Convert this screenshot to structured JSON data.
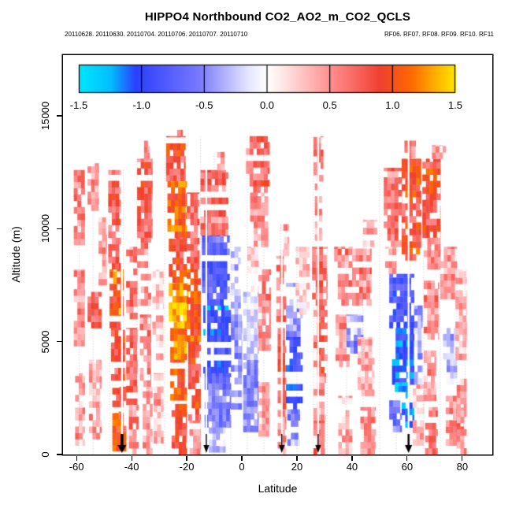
{
  "chart_data": {
    "type": "heatmap",
    "title": "HIPPO4 Northbound CO2_AO2_m_CO2_QCLS",
    "subtitle_left": "20110628. 20110630. 20110704. 20110706. 20110707. 20110710",
    "subtitle_right": "RF06. RF07. RF08. RF09. RF10. RF11",
    "xlabel": "Latitude",
    "ylabel": "Altitude (m)",
    "xlim": [
      -64.9,
      90.9
    ],
    "ylim": [
      0,
      17686
    ],
    "x_ticks": [
      -60,
      -40,
      -20,
      0,
      20,
      40,
      60,
      80
    ],
    "y_ticks": [
      0,
      5000,
      10000,
      15000
    ],
    "grid": false,
    "legend_position": "top-inside",
    "colorbar": {
      "range": [
        -1.5,
        1.5
      ],
      "ticks": [
        -1.5,
        -1.0,
        -0.5,
        0.0,
        0.5,
        1.0,
        1.5
      ],
      "tick_labels": [
        "-1.5",
        "-1.0",
        "-0.5",
        "0.0",
        "0.5",
        "1.0",
        "1.5"
      ],
      "stops": [
        [
          -1.5,
          "#00E6FF"
        ],
        [
          -1.25,
          "#00BFFF"
        ],
        [
          -1.05,
          "#2B3FFF"
        ],
        [
          -0.55,
          "#7878FF"
        ],
        [
          -0.15,
          "#E6E6FF"
        ],
        [
          0.0,
          "#FFFFFF"
        ],
        [
          0.15,
          "#FFE1E1"
        ],
        [
          0.55,
          "#FF8585"
        ],
        [
          0.9,
          "#F04030"
        ],
        [
          1.15,
          "#FF6A00"
        ],
        [
          1.35,
          "#FFB400"
        ],
        [
          1.5,
          "#FFE600"
        ]
      ]
    },
    "arrows": [
      {
        "lat": -43.5,
        "shaft": 3.5,
        "head": 5.5
      },
      {
        "lat": -12.9,
        "shaft": 1.4,
        "head": 3.6
      },
      {
        "lat": 14.5,
        "shaft": 1.4,
        "head": 3.6
      },
      {
        "lat": 27.7,
        "shaft": 1.4,
        "head": 3.6
      },
      {
        "lat": 60.5,
        "shaft": 2.4,
        "head": 4.6
      }
    ],
    "patches": [
      [
        -61,
        -57,
        9000,
        12600,
        0.55
      ],
      [
        -61,
        -57,
        4800,
        8200,
        0.45
      ],
      [
        -60.5,
        -57,
        400,
        3600,
        0.4
      ],
      [
        -56,
        -52,
        10800,
        12900,
        0.5
      ],
      [
        -56,
        -51,
        5600,
        7200,
        0.65
      ],
      [
        -55.5,
        -51,
        400,
        4200,
        0.35
      ],
      [
        -52,
        -49,
        7500,
        10500,
        0.35
      ],
      [
        -48.5,
        -44,
        8200,
        12600,
        0.7
      ],
      [
        -48,
        -43,
        5600,
        8200,
        1.0
      ],
      [
        -47.5,
        -42.5,
        3000,
        5600,
        0.85
      ],
      [
        -47,
        -42,
        150,
        3000,
        0.95
      ],
      [
        -46,
        -44,
        6200,
        7000,
        1.3
      ],
      [
        -46,
        -43.5,
        1000,
        1900,
        1.2
      ],
      [
        -42,
        -38,
        6000,
        9200,
        0.6
      ],
      [
        -42,
        -38,
        2200,
        5600,
        0.7
      ],
      [
        -41,
        -37.5,
        0,
        2200,
        0.5
      ],
      [
        -38,
        -32.5,
        9600,
        13100,
        0.7
      ],
      [
        -35.5,
        -33.5,
        13100,
        13900,
        0.5
      ],
      [
        -38,
        -33,
        6600,
        9600,
        0.5
      ],
      [
        -37,
        -33,
        3000,
        6200,
        0.6
      ],
      [
        -36,
        -32.5,
        0,
        3000,
        0.45
      ],
      [
        -32.5,
        -28.5,
        4200,
        8200,
        0.25
      ],
      [
        -32,
        -28.5,
        500,
        3600,
        0.3
      ],
      [
        -27.5,
        -20.5,
        12100,
        14100,
        0.8
      ],
      [
        -27,
        -20,
        9600,
        12100,
        1.0
      ],
      [
        -26.5,
        -20,
        7600,
        9600,
        0.9
      ],
      [
        -26.5,
        -19.5,
        5900,
        7600,
        1.3
      ],
      [
        -26,
        -20,
        4200,
        5900,
        1.2
      ],
      [
        -26,
        -20,
        2400,
        4200,
        1.0
      ],
      [
        -25.5,
        -20,
        0,
        2400,
        0.8
      ],
      [
        -23.5,
        -21.5,
        14100,
        14400,
        0.6
      ],
      [
        -20,
        -15.5,
        8200,
        11600,
        0.7
      ],
      [
        -20,
        -15,
        5000,
        8200,
        1.0
      ],
      [
        -19.5,
        -15,
        1500,
        5000,
        0.85
      ],
      [
        -19,
        -15,
        0,
        1500,
        0.5
      ],
      [
        -15,
        -5,
        9700,
        12600,
        0.6
      ],
      [
        -9,
        -6,
        12600,
        13400,
        0.4
      ],
      [
        -14.5,
        -4.5,
        6600,
        9700,
        -0.8
      ],
      [
        -14,
        -4,
        3600,
        6600,
        -1.0
      ],
      [
        -13.5,
        -4,
        1200,
        3600,
        -0.7
      ],
      [
        -12,
        -6,
        100,
        1200,
        -0.35
      ],
      [
        -4,
        -0.5,
        6200,
        9200,
        -0.2
      ],
      [
        -4,
        0,
        2000,
        6200,
        -0.45
      ],
      [
        1.5,
        10,
        11600,
        14100,
        0.65
      ],
      [
        3,
        9.5,
        9200,
        11600,
        0.5
      ],
      [
        0.5,
        6,
        1000,
        4200,
        -0.5
      ],
      [
        0.5,
        6,
        4200,
        7200,
        -0.25
      ],
      [
        6,
        10.5,
        4600,
        8200,
        0.5
      ],
      [
        6,
        10,
        800,
        3200,
        0.35
      ],
      [
        2,
        6,
        7200,
        9200,
        0.2
      ],
      [
        12.5,
        16,
        5600,
        8800,
        0.6
      ],
      [
        13,
        16,
        2000,
        5600,
        0.7
      ],
      [
        13,
        16,
        0,
        2000,
        0.45
      ],
      [
        14,
        17,
        8800,
        10200,
        0.35
      ],
      [
        16,
        22,
        5200,
        7600,
        -0.5
      ],
      [
        16,
        22,
        2000,
        5200,
        -0.9
      ],
      [
        16.5,
        21,
        400,
        2000,
        -0.5
      ],
      [
        19.5,
        24.5,
        6200,
        9200,
        0.2
      ],
      [
        25.5,
        31,
        6600,
        9200,
        0.6
      ],
      [
        26,
        31,
        3600,
        6600,
        0.7
      ],
      [
        26,
        30.5,
        1500,
        3600,
        0.5
      ],
      [
        26,
        30,
        0,
        1500,
        0.6
      ],
      [
        26,
        29.5,
        12100,
        14100,
        0.55
      ],
      [
        26.5,
        29,
        9200,
        12100,
        0.4
      ],
      [
        33.5,
        40,
        6600,
        9200,
        0.5
      ],
      [
        34,
        39,
        3600,
        6200,
        0.4
      ],
      [
        38,
        44,
        4200,
        6200,
        -0.5
      ],
      [
        40,
        47,
        6600,
        9200,
        0.5
      ],
      [
        42,
        48,
        2600,
        5200,
        0.3
      ],
      [
        43,
        48.5,
        0,
        2100,
        0.5
      ],
      [
        35,
        40,
        0,
        2600,
        0.3
      ],
      [
        44,
        49,
        9200,
        10400,
        0.3
      ],
      [
        51.5,
        58,
        9200,
        12700,
        0.6
      ],
      [
        52,
        56,
        8000,
        9200,
        0.3
      ],
      [
        58,
        65,
        8600,
        13100,
        0.85
      ],
      [
        59,
        63,
        13100,
        13900,
        0.6
      ],
      [
        53.5,
        62.5,
        5600,
        8000,
        -0.9
      ],
      [
        54.5,
        62.5,
        3100,
        5600,
        -1.1
      ],
      [
        55.5,
        60.5,
        2500,
        3200,
        -1.35
      ],
      [
        53.5,
        58,
        1000,
        2500,
        -0.6
      ],
      [
        58,
        62.5,
        1200,
        2300,
        -1.2
      ],
      [
        62.5,
        65.5,
        3100,
        6600,
        -0.4
      ],
      [
        62,
        66,
        400,
        3100,
        0.3
      ],
      [
        65.5,
        72,
        9600,
        13100,
        0.85
      ],
      [
        66,
        72,
        8200,
        9600,
        0.6
      ],
      [
        66,
        71.5,
        5100,
        7700,
        0.5
      ],
      [
        66,
        70.5,
        2100,
        4600,
        0.4
      ],
      [
        66.5,
        71,
        0,
        2100,
        0.6
      ],
      [
        69,
        74,
        13100,
        13700,
        0.4
      ],
      [
        72,
        78,
        6600,
        9200,
        0.4
      ],
      [
        73,
        78,
        3100,
        5600,
        -0.3
      ],
      [
        74,
        80.5,
        400,
        2600,
        0.5
      ],
      [
        77.5,
        81.5,
        4200,
        8200,
        0.35
      ],
      [
        78,
        81.5,
        0,
        3600,
        0.45
      ]
    ],
    "traces": [
      [
        -59,
        12600
      ],
      [
        -54,
        12900
      ],
      [
        -48,
        12600
      ],
      [
        -43,
        12700
      ],
      [
        -38,
        13100
      ],
      [
        -34,
        13900
      ],
      [
        -28,
        13100
      ],
      [
        -23,
        14400
      ],
      [
        -15,
        14100
      ],
      [
        -10,
        13400
      ],
      [
        -4,
        12600
      ],
      [
        2,
        14100
      ],
      [
        8,
        14100
      ],
      [
        14,
        10200
      ],
      [
        20,
        9200
      ],
      [
        26,
        14100
      ],
      [
        31,
        9200
      ],
      [
        38,
        9200
      ],
      [
        44,
        10400
      ],
      [
        50,
        12700
      ],
      [
        56,
        12700
      ],
      [
        61,
        13900
      ],
      [
        66,
        13100
      ],
      [
        72,
        13700
      ],
      [
        78,
        9200
      ],
      [
        81,
        8200
      ]
    ]
  }
}
